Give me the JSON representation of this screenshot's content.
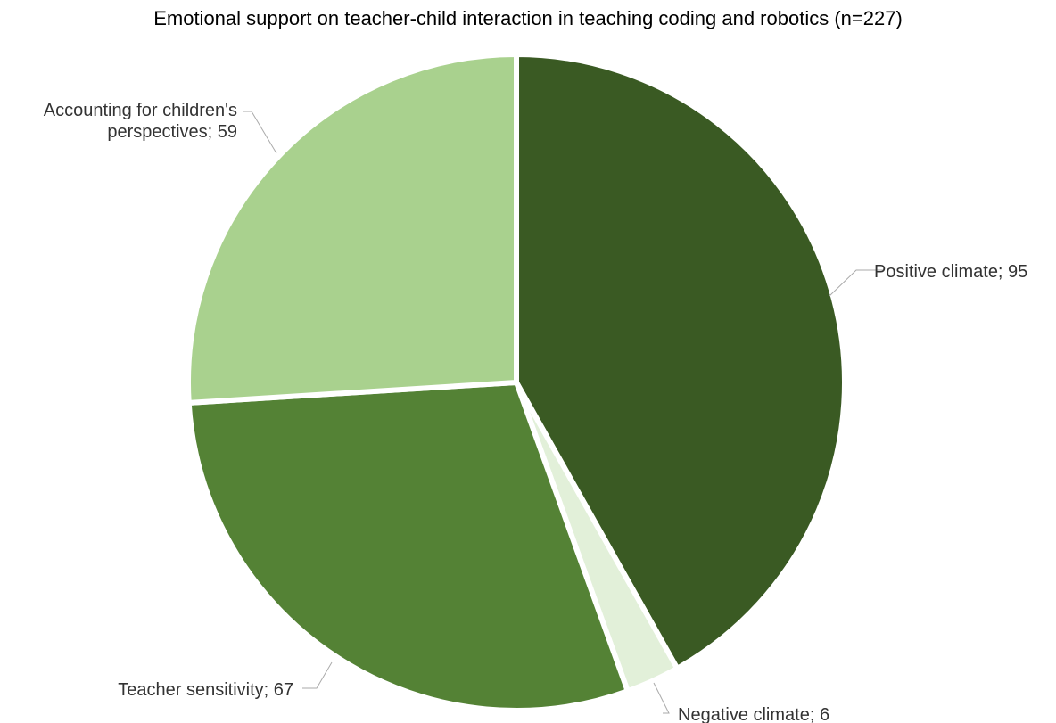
{
  "chart_data": {
    "type": "pie",
    "title": "Emotional support on teacher-child interaction in teaching coding and robotics (n=227)",
    "start_angle_deg": 0,
    "direction": "clockwise",
    "legend": "none",
    "slices": [
      {
        "label": "Positive climate",
        "value": 95,
        "label_text": "Positive climate; 95",
        "color": "#3a5a23"
      },
      {
        "label": "Negative climate",
        "value": 6,
        "label_text": "Negative climate; 6",
        "color": "#e2f0d9"
      },
      {
        "label": "Teacher sensitivity",
        "value": 67,
        "label_text": "Teacher sensitivity; 67",
        "color": "#548235"
      },
      {
        "label": "Accounting for children's perspectives",
        "value": 59,
        "label_text_lines": [
          "Accounting for children's",
          "perspectives; 59"
        ],
        "color": "#a9d18e"
      }
    ]
  }
}
